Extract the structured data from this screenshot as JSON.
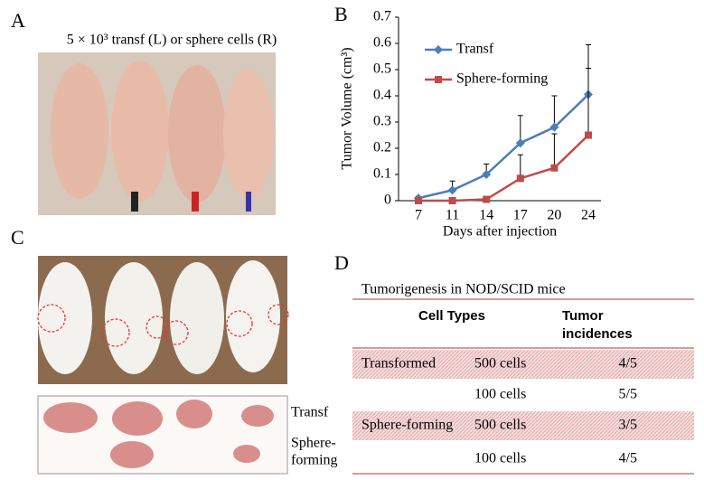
{
  "panel_labels": [
    "A",
    "B",
    "C",
    "D"
  ],
  "panel_a": {
    "title": "5 × 10³ transf (L) or sphere cells (R)"
  },
  "panel_c": {
    "tumor_labels": [
      "Transf",
      [
        "Sphere-",
        "forming"
      ]
    ]
  },
  "chart_data": {
    "type": "line",
    "ylabel": "Tumor Volume (cm³)",
    "xlabel": "Days after injection",
    "categories": [
      "7",
      "11",
      "14",
      "17",
      "20",
      "24"
    ],
    "series": [
      {
        "name": "Transf",
        "color": "#4a7ebb",
        "marker": "diamond",
        "values": [
          0.01,
          0.04,
          0.1,
          0.22,
          0.28,
          0.405
        ],
        "errors": [
          0.005,
          0.035,
          0.04,
          0.105,
          0.12,
          0.19
        ]
      },
      {
        "name": "Sphere-forming",
        "color": "#be4b48",
        "marker": "square",
        "values": [
          0,
          0,
          0.005,
          0.085,
          0.125,
          0.25
        ],
        "errors": [
          0,
          0,
          0,
          0.09,
          0.13,
          0.255
        ]
      }
    ],
    "ylim": [
      0,
      0.7
    ],
    "yticks": [
      0,
      0.1,
      0.2,
      0.3,
      0.4,
      0.5,
      0.6,
      0.7
    ],
    "legend": "upper left"
  },
  "table": {
    "title": "Tumorigenesis in NOD/SCID mice",
    "headers": [
      [
        "Cell Types"
      ],
      [
        "Tumor",
        "incidences"
      ]
    ],
    "rows": [
      [
        "Transformed",
        "500 cells",
        "4/5"
      ],
      [
        null,
        "100 cells",
        "5/5"
      ],
      [
        "Sphere-forming",
        "500 cells",
        "3/5"
      ],
      [
        null,
        "100 cells",
        "4/5"
      ]
    ],
    "shaded_rows": [
      0,
      2
    ]
  }
}
